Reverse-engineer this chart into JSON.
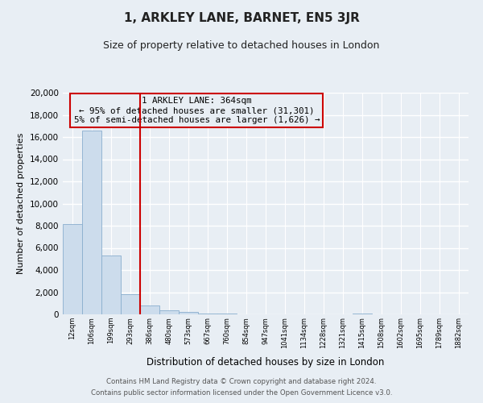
{
  "title": "1, ARKLEY LANE, BARNET, EN5 3JR",
  "subtitle": "Size of property relative to detached houses in London",
  "xlabel": "Distribution of detached houses by size in London",
  "ylabel": "Number of detached properties",
  "bin_labels": [
    "12sqm",
    "106sqm",
    "199sqm",
    "293sqm",
    "386sqm",
    "480sqm",
    "573sqm",
    "667sqm",
    "760sqm",
    "854sqm",
    "947sqm",
    "1041sqm",
    "1134sqm",
    "1228sqm",
    "1321sqm",
    "1415sqm",
    "1508sqm",
    "1602sqm",
    "1695sqm",
    "1789sqm",
    "1882sqm"
  ],
  "bar_values": [
    8150,
    16600,
    5300,
    1800,
    800,
    350,
    200,
    100,
    100,
    0,
    0,
    0,
    0,
    0,
    0,
    100,
    0,
    0,
    0,
    0,
    0
  ],
  "bar_color": "#ccdcec",
  "bar_edge_color": "#89aece",
  "vline_x": 4.0,
  "vline_color": "#cc0000",
  "annotation_title": "1 ARKLEY LANE: 364sqm",
  "annotation_line1": "← 95% of detached houses are smaller (31,301)",
  "annotation_line2": "5% of semi-detached houses are larger (1,626) →",
  "annotation_box_edge_color": "#cc0000",
  "ylim": [
    0,
    20000
  ],
  "yticks": [
    0,
    2000,
    4000,
    6000,
    8000,
    10000,
    12000,
    14000,
    16000,
    18000,
    20000
  ],
  "footer_line1": "Contains HM Land Registry data © Crown copyright and database right 2024.",
  "footer_line2": "Contains public sector information licensed under the Open Government Licence v3.0.",
  "bg_color": "#e8eef4",
  "plot_bg_color": "#e8eef4",
  "grid_color": "#ffffff"
}
